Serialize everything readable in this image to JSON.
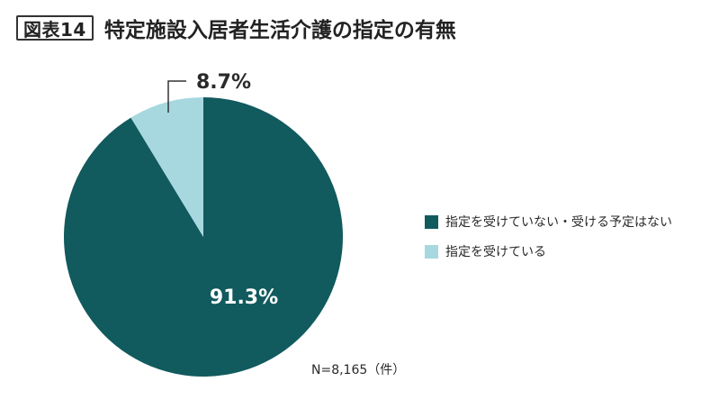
{
  "figure": {
    "badge": "図表14",
    "title": "特定施設入居者生活介護の指定の有無"
  },
  "chart_data": {
    "type": "pie",
    "slices": [
      {
        "label": "指定を受けていない・受ける予定はない",
        "value": 91.3,
        "display": "91.3%",
        "color": "#115a5e"
      },
      {
        "label": "指定を受けている",
        "value": 8.7,
        "display": "8.7%",
        "color": "#a7d8e0"
      }
    ],
    "start": "12 o'clock",
    "direction": "clockwise",
    "legend_position": "right"
  },
  "note": "N=8,165（件）"
}
